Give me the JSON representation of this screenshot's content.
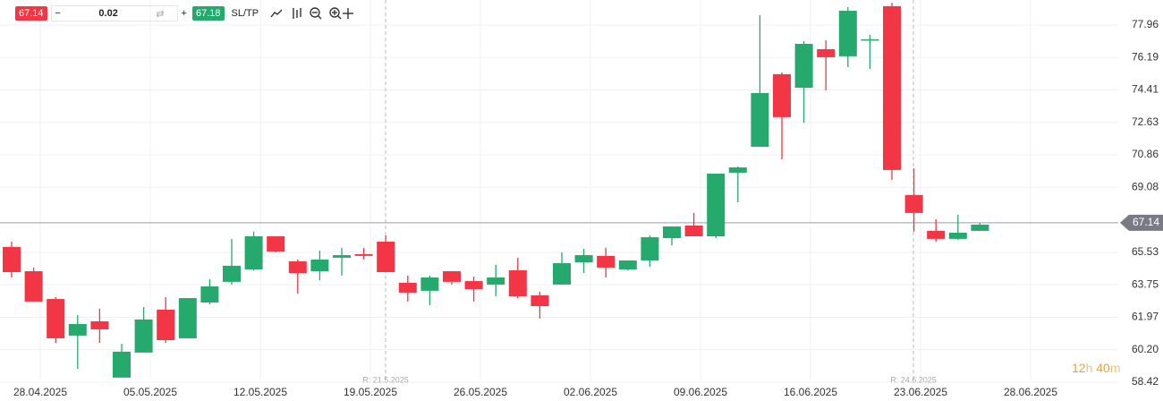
{
  "toolbar": {
    "sell_price": "67.14",
    "minus": "−",
    "quantity": "0.02",
    "plus": "+",
    "buy_price": "67.18",
    "sltp": "SL/TP"
  },
  "timer": {
    "hours": "12",
    "h": "h",
    "minutes": "40",
    "m": "m"
  },
  "chart_data": {
    "type": "candlestick",
    "x_labels": [
      "28.04.2025",
      "05.05.2025",
      "12.05.2025",
      "19.05.2025",
      "26.05.2025",
      "02.06.2025",
      "09.06.2025",
      "16.06.2025",
      "23.06.2025",
      "28.06.2025"
    ],
    "open": [
      65.82,
      64.49,
      62.97,
      60.97,
      61.75,
      58.67,
      60.04,
      62.39,
      60.82,
      62.78,
      63.91,
      64.59,
      66.4,
      65.03,
      64.49,
      65.23,
      65.42,
      66.11,
      63.86,
      63.42,
      64.49,
      63.95,
      63.76,
      64.54,
      63.17,
      63.76,
      64.98,
      65.33,
      64.59,
      65.08,
      66.3,
      66.99,
      66.4,
      69.88,
      71.3,
      75.27,
      74.53,
      76.64,
      76.25,
      77.13,
      78.99,
      68.66,
      66.7,
      66.26,
      66.7
    ],
    "high": [
      66.11,
      64.69,
      63.07,
      62.09,
      62.44,
      60.53,
      62.53,
      63.07,
      63.02,
      64.05,
      66.26,
      66.65,
      66.4,
      65.13,
      65.62,
      65.77,
      65.77,
      66.45,
      64.25,
      64.25,
      64.49,
      64.2,
      64.84,
      65.23,
      63.37,
      65.52,
      65.72,
      65.77,
      65.08,
      66.45,
      66.94,
      67.68,
      69.83,
      70.22,
      78.5,
      75.36,
      77.08,
      77.13,
      78.94,
      77.42,
      79.18,
      70.12,
      67.33,
      67.58,
      67.14
    ],
    "low": [
      64.15,
      62.83,
      60.57,
      59.15,
      60.57,
      58.67,
      60.04,
      60.57,
      60.82,
      62.68,
      63.76,
      64.54,
      65.52,
      63.27,
      64.0,
      64.25,
      65.13,
      64.44,
      62.83,
      62.63,
      63.76,
      62.83,
      63.12,
      63.02,
      61.9,
      63.76,
      64.39,
      64.15,
      64.54,
      64.74,
      65.91,
      66.4,
      66.3,
      68.26,
      71.3,
      70.61,
      72.62,
      74.39,
      75.66,
      75.56,
      69.49,
      66.65,
      66.11,
      66.21,
      66.7
    ],
    "close": [
      64.44,
      62.83,
      60.82,
      61.6,
      61.31,
      60.09,
      61.85,
      60.72,
      63.02,
      63.66,
      64.79,
      66.4,
      65.57,
      64.39,
      65.13,
      65.37,
      65.33,
      64.44,
      63.32,
      64.15,
      63.91,
      63.51,
      64.15,
      63.12,
      62.58,
      64.93,
      65.37,
      64.69,
      65.08,
      66.35,
      66.94,
      66.4,
      69.83,
      70.17,
      74.24,
      72.92,
      76.93,
      76.2,
      78.74,
      77.18,
      70.03,
      67.68,
      66.26,
      66.6,
      67.04
    ],
    "up_color": "#26a96c",
    "down_color": "#f23645",
    "ylim": [
      57.39,
      79.33
    ],
    "yticks": [
      77.96,
      76.19,
      74.41,
      72.63,
      70.86,
      69.08,
      65.53,
      63.75,
      61.97,
      {
        "value": 60.2,
        "label": "60.20"
      },
      58.42
    ],
    "current_price": 67.14,
    "annotations": [
      "R: 21.5.2025",
      "R: 24.6.2025"
    ],
    "grid": true
  }
}
